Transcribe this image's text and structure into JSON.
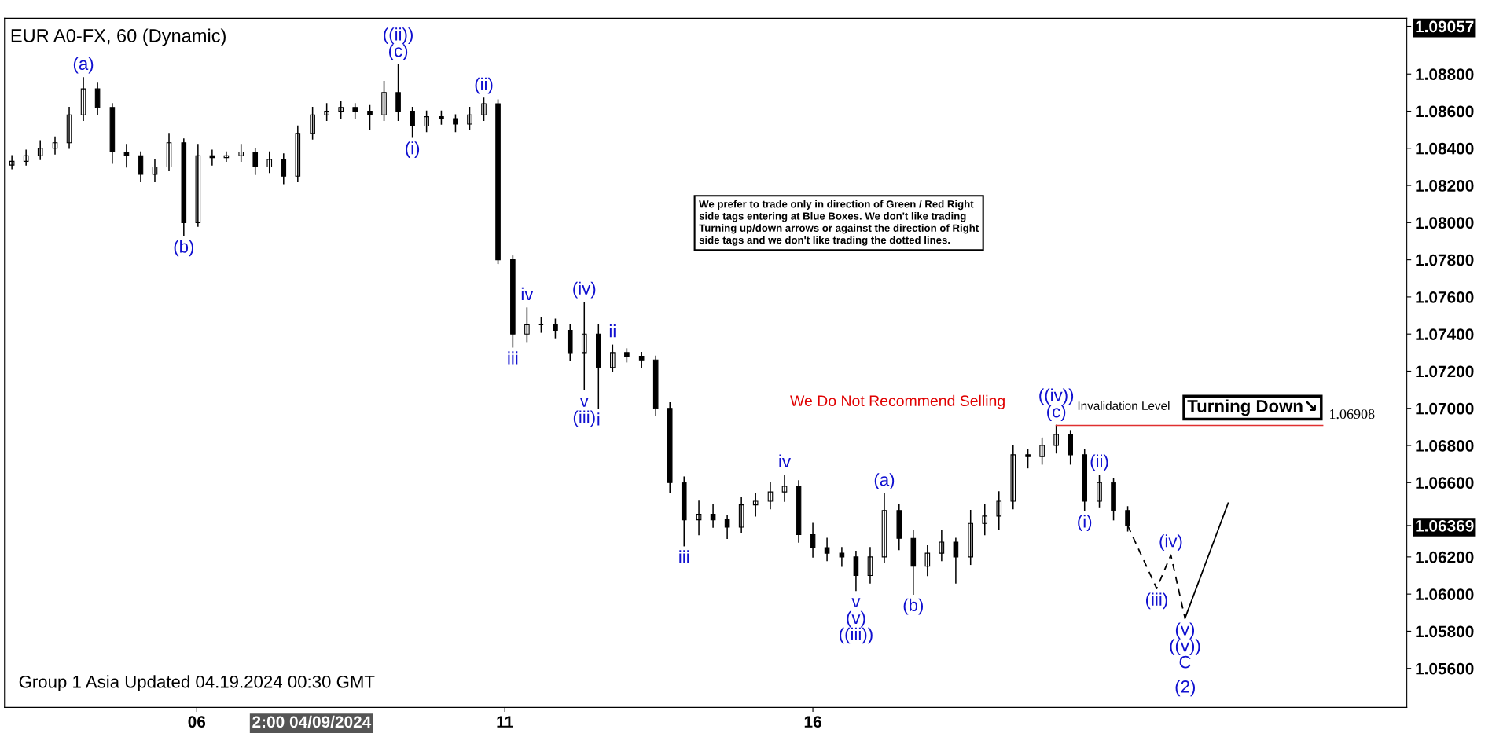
{
  "chart_data": {
    "type": "candlestick",
    "title": "EUR A0-FX, 60 (Dynamic)",
    "x": [
      3.0,
      3.23,
      3.46,
      3.7,
      3.93,
      4.16,
      4.39,
      4.63,
      4.86,
      5.09,
      5.32,
      5.55,
      5.79,
      6.02,
      6.25,
      6.48,
      6.72,
      6.95,
      7.18,
      7.41,
      7.64,
      7.88,
      8.11,
      8.34,
      8.57,
      8.81,
      9.04,
      9.27,
      9.5,
      9.73,
      9.97,
      10.2,
      10.43,
      10.66,
      10.89,
      11.13,
      11.36,
      11.59,
      11.82,
      12.06,
      12.29,
      12.52,
      12.75,
      12.98,
      13.22,
      13.45,
      13.68,
      13.91,
      14.15,
      14.38,
      14.61,
      14.84,
      15.07,
      15.31,
      15.54,
      15.77,
      16.0,
      16.23,
      16.47,
      16.7,
      16.93,
      17.16,
      17.4,
      17.63,
      17.86,
      18.09,
      18.32,
      18.56,
      18.79,
      19.02,
      19.25,
      19.49,
      19.72,
      19.95,
      20.18,
      20.41,
      20.65,
      20.88,
      21.11
    ],
    "ohlc": [
      [
        1.0831,
        1.0836,
        1.0829,
        1.0833
      ],
      [
        1.0833,
        1.0839,
        1.0831,
        1.0836
      ],
      [
        1.0836,
        1.0844,
        1.0834,
        1.084
      ],
      [
        1.084,
        1.0846,
        1.0837,
        1.0843
      ],
      [
        1.0843,
        1.0862,
        1.084,
        1.0858
      ],
      [
        1.0858,
        1.0878,
        1.0855,
        1.0872
      ],
      [
        1.0872,
        1.0875,
        1.0858,
        1.0862
      ],
      [
        1.0862,
        1.0864,
        1.0832,
        1.0838
      ],
      [
        1.0838,
        1.0842,
        1.083,
        1.0836
      ],
      [
        1.0836,
        1.0838,
        1.0822,
        1.0826
      ],
      [
        1.0826,
        1.0834,
        1.0822,
        1.083
      ],
      [
        1.083,
        1.0848,
        1.0828,
        1.0843
      ],
      [
        1.0843,
        1.0845,
        1.0793,
        1.08
      ],
      [
        1.08,
        1.0842,
        1.0798,
        1.0836
      ],
      [
        1.0836,
        1.0839,
        1.0831,
        1.0835
      ],
      [
        1.0835,
        1.0838,
        1.0833,
        1.0836
      ],
      [
        1.0836,
        1.0842,
        1.0833,
        1.0838
      ],
      [
        1.0838,
        1.084,
        1.0826,
        1.083
      ],
      [
        1.083,
        1.0838,
        1.0827,
        1.0834
      ],
      [
        1.0834,
        1.0837,
        1.0821,
        1.0825
      ],
      [
        1.0825,
        1.0852,
        1.0822,
        1.0848
      ],
      [
        1.0848,
        1.0862,
        1.0845,
        1.0858
      ],
      [
        1.0858,
        1.0864,
        1.0855,
        1.086
      ],
      [
        1.086,
        1.0865,
        1.0856,
        1.0862
      ],
      [
        1.0862,
        1.0864,
        1.0856,
        1.086
      ],
      [
        1.086,
        1.0863,
        1.085,
        1.0858
      ],
      [
        1.0858,
        1.0876,
        1.0855,
        1.087
      ],
      [
        1.087,
        1.0885,
        1.0855,
        1.086
      ],
      [
        1.086,
        1.0862,
        1.0846,
        1.0852
      ],
      [
        1.0852,
        1.086,
        1.0849,
        1.0857
      ],
      [
        1.0857,
        1.086,
        1.0853,
        1.0856
      ],
      [
        1.0856,
        1.0858,
        1.0849,
        1.0853
      ],
      [
        1.0853,
        1.0862,
        1.085,
        1.0858
      ],
      [
        1.0858,
        1.0867,
        1.0855,
        1.0864
      ],
      [
        1.0864,
        1.0866,
        1.0778,
        1.078
      ],
      [
        1.078,
        1.0782,
        1.0733,
        1.074
      ],
      [
        1.074,
        1.0754,
        1.0736,
        1.0745
      ],
      [
        1.0745,
        1.0749,
        1.0741,
        1.0745
      ],
      [
        1.0745,
        1.0748,
        1.0738,
        1.0742
      ],
      [
        1.0742,
        1.0745,
        1.0726,
        1.073
      ],
      [
        1.073,
        1.0757,
        1.071,
        1.074
      ],
      [
        1.074,
        1.0745,
        1.07,
        1.0722
      ],
      [
        1.0722,
        1.0734,
        1.072,
        1.073
      ],
      [
        1.073,
        1.0732,
        1.0725,
        1.0728
      ],
      [
        1.0728,
        1.073,
        1.0722,
        1.0726
      ],
      [
        1.0726,
        1.0728,
        1.0696,
        1.07
      ],
      [
        1.07,
        1.0703,
        1.0655,
        1.066
      ],
      [
        1.066,
        1.0663,
        1.0626,
        1.064
      ],
      [
        1.064,
        1.065,
        1.0632,
        1.0643
      ],
      [
        1.0643,
        1.0648,
        1.0636,
        1.064
      ],
      [
        1.064,
        1.0642,
        1.063,
        1.0636
      ],
      [
        1.0636,
        1.0652,
        1.0633,
        1.0648
      ],
      [
        1.0648,
        1.0654,
        1.0642,
        1.065
      ],
      [
        1.065,
        1.066,
        1.0646,
        1.0655
      ],
      [
        1.0655,
        1.0664,
        1.065,
        1.0658
      ],
      [
        1.0658,
        1.0661,
        1.0628,
        1.0632
      ],
      [
        1.0632,
        1.0638,
        1.062,
        1.0625
      ],
      [
        1.0625,
        1.063,
        1.0618,
        1.0622
      ],
      [
        1.0622,
        1.0625,
        1.0615,
        1.062
      ],
      [
        1.062,
        1.0623,
        1.0602,
        1.061
      ],
      [
        1.061,
        1.0625,
        1.0606,
        1.062
      ],
      [
        1.062,
        1.0654,
        1.0617,
        1.0645
      ],
      [
        1.0645,
        1.0648,
        1.0624,
        1.063
      ],
      [
        1.063,
        1.0634,
        1.06,
        1.0615
      ],
      [
        1.0615,
        1.0626,
        1.061,
        1.0622
      ],
      [
        1.0622,
        1.0634,
        1.0618,
        1.0628
      ],
      [
        1.0628,
        1.063,
        1.0606,
        1.062
      ],
      [
        1.062,
        1.0645,
        1.0616,
        1.0638
      ],
      [
        1.0638,
        1.0648,
        1.0632,
        1.0642
      ],
      [
        1.0642,
        1.0655,
        1.0635,
        1.065
      ],
      [
        1.065,
        1.068,
        1.0646,
        1.0675
      ],
      [
        1.0675,
        1.0678,
        1.0668,
        1.0674
      ],
      [
        1.0674,
        1.0684,
        1.067,
        1.068
      ],
      [
        1.068,
        1.06908,
        1.0676,
        1.0686
      ],
      [
        1.0686,
        1.0688,
        1.067,
        1.0675
      ],
      [
        1.0675,
        1.0678,
        1.0645,
        1.065
      ],
      [
        1.065,
        1.0664,
        1.0647,
        1.066
      ],
      [
        1.066,
        1.0662,
        1.064,
        1.0645
      ],
      [
        1.0645,
        1.0647,
        1.0634,
        1.06369
      ]
    ],
    "color": "#000000",
    "series": [
      {
        "type": "line",
        "x": [
          21.11,
          21.58,
          21.81,
          22.04
        ],
        "values": [
          1.06369,
          1.0603,
          1.0621,
          1.0587
        ],
        "color": "#000000",
        "line_style": "dashed"
      },
      {
        "type": "line",
        "x": [
          22.04,
          22.74
        ],
        "values": [
          1.0587,
          1.0649
        ],
        "color": "#000000",
        "line_style": "solid"
      }
    ],
    "xlim": [
      2.88,
      25.64
    ],
    "xticks": [
      {
        "value": 6,
        "label": "06"
      },
      {
        "value": 11,
        "label": "11"
      },
      {
        "value": 16,
        "label": "16"
      }
    ],
    "ylim": [
      1.0539,
      1.091
    ],
    "yticks": [
      {
        "value": 1.056,
        "label": "1.05600"
      },
      {
        "value": 1.058,
        "label": "1.05800"
      },
      {
        "value": 1.06,
        "label": "1.06000"
      },
      {
        "value": 1.062,
        "label": "1.06200"
      },
      1.06369,
      {
        "value": 1.066,
        "label": "1.06600"
      },
      {
        "value": 1.068,
        "label": "1.06800"
      },
      {
        "value": 1.07,
        "label": "1.07000"
      },
      {
        "value": 1.072,
        "label": "1.07200"
      },
      {
        "value": 1.074,
        "label": "1.07400"
      },
      {
        "value": 1.076,
        "label": "1.07600"
      },
      {
        "value": 1.078,
        "label": "1.07800"
      },
      {
        "value": 1.08,
        "label": "1.08000"
      },
      {
        "value": 1.082,
        "label": "1.08200"
      },
      {
        "value": 1.084,
        "label": "1.08400"
      },
      {
        "value": 1.086,
        "label": "1.08600"
      },
      {
        "value": 1.088,
        "label": "1.08800"
      },
      1.09057
    ],
    "ref_lines": [
      {
        "axis": "y",
        "value": 1.06908,
        "label": "1.06908",
        "color": "#e03030",
        "line_style": "solid"
      }
    ],
    "grid": false,
    "legend": false,
    "annotations": [
      "We Do Not Recommend Selling",
      "We prefer to trade only in direction of Green / Red Right\nside tags entering at Blue Boxes. We don't like trading\nTurning up/down arrows or against the direction of Right\nside tags and we don't like trading the dotted lines.",
      "Turning Down↘",
      "Group 1 Asia Updated 04.19.2024 00:30 GMT",
      "Invalidation Level",
      "2:00 04/09/2024",
      "(2)",
      {
        "text": "(a)",
        "x": 4.16,
        "y": 1.0878
      },
      {
        "text": "(b)",
        "x": 5.79,
        "y": 1.0793
      },
      {
        "text": "(c)",
        "x": 9.27,
        "y": 1.0885
      },
      {
        "text": "((ii))",
        "x": 9.27,
        "y": 1.0885
      },
      {
        "text": "(i)",
        "x": 9.5,
        "y": 1.0846
      },
      {
        "text": "(ii)",
        "x": 10.66,
        "y": 1.0867
      },
      {
        "text": "iii",
        "x": 11.13,
        "y": 1.0733
      },
      {
        "text": "iv",
        "x": 11.36,
        "y": 1.0754
      },
      {
        "text": "(iv)",
        "x": 12.29,
        "y": 1.0757
      },
      {
        "text": "v",
        "x": 12.29,
        "y": 1.071
      },
      {
        "text": "(iii)",
        "x": 12.29,
        "y": 1.071
      },
      {
        "text": "i",
        "x": 12.52,
        "y": 1.07
      },
      {
        "text": "ii",
        "x": 12.75,
        "y": 1.0734
      },
      {
        "text": "iii",
        "x": 13.91,
        "y": 1.0626
      },
      {
        "text": "iv",
        "x": 15.54,
        "y": 1.0664
      },
      {
        "text": "v",
        "x": 16.7,
        "y": 1.0602
      },
      {
        "text": "(v)",
        "x": 16.7,
        "y": 1.0602
      },
      {
        "text": "((iii))",
        "x": 16.7,
        "y": 1.0602
      },
      {
        "text": "(a)",
        "x": 17.16,
        "y": 1.0654
      },
      {
        "text": "(b)",
        "x": 17.63,
        "y": 1.06
      },
      {
        "text": "(c)",
        "x": 19.95,
        "y": 1.06908
      },
      {
        "text": "((iv))",
        "x": 19.95,
        "y": 1.06908
      },
      {
        "text": "(i)",
        "x": 20.41,
        "y": 1.0645
      },
      {
        "text": "(ii)",
        "x": 20.65,
        "y": 1.0664
      },
      {
        "text": "(iii)",
        "x": 21.58,
        "y": 1.0603
      },
      {
        "text": "(iv)",
        "x": 21.81,
        "y": 1.0621
      },
      {
        "text": "(v)",
        "x": 22.04,
        "y": 1.0587
      },
      {
        "text": "((v))",
        "x": 22.04,
        "y": 1.0587
      },
      {
        "text": "C",
        "x": 22.04,
        "y": 1.0587
      }
    ]
  }
}
